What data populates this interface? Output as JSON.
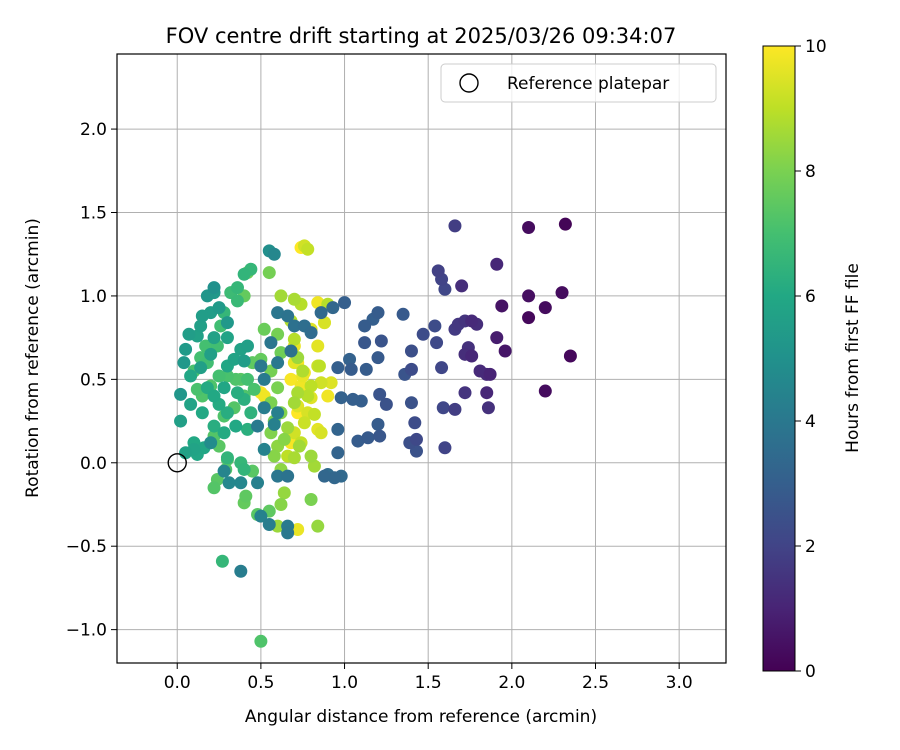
{
  "chart_data": {
    "type": "scatter",
    "title": "FOV centre drift starting at 2025/03/26 09:34:07",
    "xlabel": "Angular distance from reference (arcmin)",
    "ylabel": "Rotation from reference (arcmin)",
    "xlim": [
      -0.36,
      3.28
    ],
    "ylim": [
      -1.2,
      2.45
    ],
    "x_ticks": [
      0.0,
      0.5,
      1.0,
      1.5,
      2.0,
      2.5,
      3.0
    ],
    "y_ticks": [
      -1.0,
      -0.5,
      0.0,
      0.5,
      1.0,
      1.5,
      2.0
    ],
    "grid": true,
    "legend": {
      "placement": "top-right",
      "entries": [
        "Reference platepar"
      ]
    },
    "reference_point": {
      "x": 0.0,
      "y": 0.0
    },
    "colorbar": {
      "label": "Hours from first FF file",
      "range": [
        0,
        10
      ],
      "ticks": [
        0,
        2,
        4,
        6,
        8,
        10
      ],
      "colormap": "viridis"
    },
    "points": [
      [
        2.32,
        1.43,
        0.1
      ],
      [
        2.1,
        1.41,
        0.3
      ],
      [
        2.3,
        1.02,
        0.3
      ],
      [
        2.1,
        1.0,
        0.4
      ],
      [
        2.2,
        0.93,
        0.3
      ],
      [
        2.1,
        0.87,
        0.2
      ],
      [
        2.35,
        0.64,
        0.2
      ],
      [
        2.2,
        0.43,
        0.3
      ],
      [
        1.96,
        0.67,
        0.6
      ],
      [
        1.94,
        0.94,
        0.5
      ],
      [
        1.91,
        1.19,
        1.1
      ],
      [
        1.87,
        0.53,
        1.0
      ],
      [
        1.85,
        0.53,
        1.2
      ],
      [
        1.85,
        0.42,
        1.1
      ],
      [
        1.86,
        0.33,
        1.4
      ],
      [
        1.91,
        0.75,
        0.8
      ],
      [
        1.79,
        0.83,
        1.3
      ],
      [
        1.76,
        0.85,
        1.2
      ],
      [
        1.72,
        0.85,
        1.5
      ],
      [
        1.68,
        0.83,
        1.6
      ],
      [
        1.66,
        0.8,
        1.7
      ],
      [
        1.74,
        0.69,
        1.4
      ],
      [
        1.72,
        0.65,
        1.3
      ],
      [
        1.76,
        0.64,
        1.1
      ],
      [
        1.81,
        0.55,
        1.2
      ],
      [
        1.72,
        0.42,
        1.5
      ],
      [
        1.7,
        1.06,
        1.3
      ],
      [
        1.66,
        1.42,
        1.8
      ],
      [
        1.58,
        1.1,
        2.0
      ],
      [
        1.56,
        1.15,
        1.9
      ],
      [
        1.6,
        1.04,
        2.1
      ],
      [
        1.54,
        0.82,
        2.3
      ],
      [
        1.47,
        0.77,
        2.3
      ],
      [
        1.55,
        0.72,
        2.2
      ],
      [
        1.58,
        0.57,
        2.1
      ],
      [
        1.66,
        0.32,
        1.8
      ],
      [
        1.59,
        0.33,
        2.1
      ],
      [
        1.6,
        0.09,
        2.0
      ],
      [
        1.43,
        0.07,
        2.5
      ],
      [
        1.39,
        0.12,
        2.4
      ],
      [
        1.43,
        0.14,
        2.2
      ],
      [
        1.42,
        0.24,
        2.3
      ],
      [
        1.4,
        0.36,
        2.5
      ],
      [
        1.4,
        0.56,
        2.3
      ],
      [
        1.4,
        0.67,
        2.4
      ],
      [
        1.36,
        0.53,
        2.6
      ],
      [
        1.35,
        0.89,
        2.8
      ],
      [
        1.2,
        0.9,
        2.9
      ],
      [
        1.17,
        0.86,
        3.0
      ],
      [
        1.12,
        0.82,
        2.9
      ],
      [
        1.0,
        0.96,
        3.0
      ],
      [
        1.22,
        0.73,
        2.6
      ],
      [
        1.12,
        0.72,
        2.7
      ],
      [
        1.2,
        0.63,
        2.8
      ],
      [
        1.13,
        0.56,
        2.9
      ],
      [
        1.03,
        0.62,
        3.1
      ],
      [
        1.04,
        0.56,
        2.9
      ],
      [
        0.96,
        0.57,
        3.0
      ],
      [
        1.25,
        0.35,
        2.5
      ],
      [
        1.21,
        0.41,
        2.6
      ],
      [
        1.21,
        0.16,
        2.7
      ],
      [
        1.14,
        0.15,
        2.8
      ],
      [
        1.2,
        0.23,
        2.9
      ],
      [
        1.08,
        0.13,
        2.9
      ],
      [
        1.1,
        0.37,
        3.0
      ],
      [
        1.05,
        0.38,
        3.0
      ],
      [
        0.98,
        0.39,
        3.1
      ],
      [
        0.96,
        0.2,
        3.2
      ],
      [
        0.96,
        0.06,
        3.2
      ],
      [
        0.94,
        -0.09,
        3.3
      ],
      [
        0.88,
        -0.08,
        3.3
      ],
      [
        0.98,
        -0.08,
        3.4
      ],
      [
        0.9,
        -0.07,
        3.5
      ],
      [
        0.86,
        0.9,
        3.4
      ],
      [
        0.93,
        0.93,
        3.3
      ],
      [
        0.8,
        0.78,
        3.5
      ],
      [
        0.76,
        0.82,
        3.6
      ],
      [
        0.7,
        0.82,
        3.7
      ],
      [
        0.66,
        0.88,
        3.8
      ],
      [
        0.6,
        0.9,
        3.9
      ],
      [
        0.56,
        0.72,
        3.9
      ],
      [
        0.6,
        0.6,
        4.0
      ],
      [
        0.68,
        0.67,
        3.7
      ],
      [
        0.52,
        0.5,
        4.1
      ],
      [
        0.5,
        0.58,
        4.0
      ],
      [
        0.52,
        0.33,
        4.2
      ],
      [
        0.6,
        0.3,
        4.3
      ],
      [
        0.48,
        0.22,
        4.1
      ],
      [
        0.58,
        0.23,
        4.3
      ],
      [
        0.52,
        0.08,
        4.4
      ],
      [
        0.66,
        -0.08,
        3.8
      ],
      [
        0.6,
        -0.08,
        3.9
      ],
      [
        0.55,
        -0.37,
        4.2
      ],
      [
        0.5,
        -0.32,
        4.4
      ],
      [
        0.66,
        -0.42,
        4.0
      ],
      [
        0.38,
        -0.65,
        4.2
      ],
      [
        0.66,
        -0.38,
        4.1
      ],
      [
        0.48,
        -0.12,
        4.3
      ],
      [
        0.38,
        -0.12,
        4.6
      ],
      [
        0.28,
        -0.05,
        4.5
      ],
      [
        0.31,
        -0.12,
        4.6
      ],
      [
        0.2,
        0.12,
        4.8
      ],
      [
        0.58,
        1.25,
        4.6
      ],
      [
        0.55,
        1.27,
        4.9
      ],
      [
        0.22,
        1.05,
        5.0
      ],
      [
        0.18,
        1.0,
        5.2
      ],
      [
        0.22,
        1.02,
        5.3
      ],
      [
        0.25,
        0.93,
        5.4
      ],
      [
        0.3,
        0.84,
        5.3
      ],
      [
        0.2,
        0.9,
        5.5
      ],
      [
        0.15,
        0.88,
        5.5
      ],
      [
        0.14,
        0.82,
        5.6
      ],
      [
        0.12,
        0.76,
        5.7
      ],
      [
        0.07,
        0.77,
        5.5
      ],
      [
        0.05,
        0.68,
        5.4
      ],
      [
        0.04,
        0.6,
        5.3
      ],
      [
        0.02,
        0.41,
        5.2
      ],
      [
        0.02,
        0.25,
        5.6
      ],
      [
        0.05,
        0.06,
        5.7
      ],
      [
        0.1,
        0.08,
        5.8
      ],
      [
        0.12,
        0.05,
        5.9
      ],
      [
        0.16,
        0.09,
        5.9
      ],
      [
        0.1,
        0.12,
        6.0
      ],
      [
        0.08,
        0.35,
        5.8
      ],
      [
        0.08,
        0.52,
        5.9
      ],
      [
        0.14,
        0.57,
        5.6
      ],
      [
        0.2,
        0.65,
        5.6
      ],
      [
        0.22,
        0.75,
        5.7
      ],
      [
        0.3,
        0.75,
        5.8
      ],
      [
        0.34,
        0.62,
        5.8
      ],
      [
        0.3,
        0.58,
        5.9
      ],
      [
        0.38,
        0.68,
        5.7
      ],
      [
        0.4,
        0.61,
        5.5
      ],
      [
        0.42,
        0.7,
        5.6
      ],
      [
        0.28,
        0.45,
        5.9
      ],
      [
        0.22,
        0.4,
        6.0
      ],
      [
        0.18,
        0.45,
        6.1
      ],
      [
        0.25,
        0.35,
        6.1
      ],
      [
        0.3,
        0.3,
        6.2
      ],
      [
        0.35,
        0.22,
        6.0
      ],
      [
        0.28,
        0.18,
        6.1
      ],
      [
        0.22,
        0.22,
        6.2
      ],
      [
        0.15,
        0.3,
        6.0
      ],
      [
        0.36,
        0.42,
        6.2
      ],
      [
        0.4,
        0.38,
        6.3
      ],
      [
        0.44,
        0.3,
        6.4
      ],
      [
        0.42,
        0.2,
        6.3
      ],
      [
        0.3,
        0.03,
        6.5
      ],
      [
        0.38,
        0.0,
        6.6
      ],
      [
        0.4,
        -0.04,
        6.5
      ],
      [
        0.44,
        1.16,
        6.6
      ],
      [
        0.4,
        1.13,
        6.5
      ],
      [
        0.36,
        1.05,
        6.6
      ],
      [
        0.32,
        1.02,
        6.8
      ],
      [
        0.36,
        0.97,
        6.7
      ],
      [
        0.28,
        0.9,
        6.6
      ],
      [
        0.26,
        0.82,
        6.9
      ],
      [
        0.24,
        0.7,
        6.9
      ],
      [
        0.17,
        0.7,
        7.0
      ],
      [
        0.14,
        0.63,
        7.0
      ],
      [
        0.18,
        0.6,
        6.9
      ],
      [
        0.1,
        0.55,
        7.1
      ],
      [
        0.12,
        0.44,
        7.1
      ],
      [
        0.15,
        0.4,
        7.2
      ],
      [
        0.2,
        0.46,
        7.2
      ],
      [
        0.25,
        0.52,
        7.0
      ],
      [
        0.3,
        0.52,
        7.1
      ],
      [
        0.35,
        0.5,
        7.2
      ],
      [
        0.42,
        0.5,
        7.0
      ],
      [
        0.46,
        0.44,
        7.1
      ],
      [
        0.4,
        0.4,
        7.2
      ],
      [
        0.34,
        0.33,
        7.3
      ],
      [
        0.28,
        0.28,
        7.2
      ],
      [
        0.22,
        0.16,
        7.3
      ],
      [
        0.25,
        0.1,
        7.4
      ],
      [
        0.3,
        0.02,
        7.3
      ],
      [
        0.24,
        -0.1,
        7.4
      ],
      [
        0.22,
        -0.15,
        7.3
      ],
      [
        0.29,
        -0.04,
        7.3
      ],
      [
        0.45,
        -0.05,
        7.4
      ],
      [
        0.41,
        -0.2,
        7.5
      ],
      [
        0.4,
        -0.24,
        7.6
      ],
      [
        0.48,
        -0.31,
        7.4
      ],
      [
        0.55,
        -0.29,
        7.5
      ],
      [
        0.27,
        -0.59,
        6.6
      ],
      [
        0.5,
        -1.07,
        7.2
      ],
      [
        0.38,
        0.5,
        7.4
      ],
      [
        0.45,
        0.6,
        7.5
      ],
      [
        0.5,
        0.62,
        7.6
      ],
      [
        0.52,
        0.8,
        7.7
      ],
      [
        0.4,
        1.0,
        7.6
      ],
      [
        0.42,
        1.14,
        7.8
      ],
      [
        0.55,
        1.14,
        7.9
      ],
      [
        0.6,
        0.77,
        7.9
      ],
      [
        0.62,
        0.66,
        7.8
      ],
      [
        0.56,
        0.55,
        7.9
      ],
      [
        0.6,
        0.45,
        8.0
      ],
      [
        0.56,
        0.36,
        8.0
      ],
      [
        0.58,
        0.25,
        7.9
      ],
      [
        0.62,
        0.3,
        8.1
      ],
      [
        0.56,
        0.18,
        8.1
      ],
      [
        0.64,
        0.14,
        8.2
      ],
      [
        0.6,
        0.1,
        8.3
      ],
      [
        0.58,
        0.04,
        8.2
      ],
      [
        0.62,
        -0.04,
        8.3
      ],
      [
        0.64,
        -0.18,
        8.4
      ],
      [
        0.62,
        -0.25,
        8.2
      ],
      [
        0.6,
        -0.38,
        8.5
      ],
      [
        0.8,
        -0.22,
        8.0
      ],
      [
        0.84,
        -0.38,
        8.4
      ],
      [
        0.82,
        -0.02,
        8.6
      ],
      [
        0.8,
        0.04,
        8.5
      ],
      [
        0.73,
        0.1,
        8.6
      ],
      [
        0.7,
        0.03,
        8.7
      ],
      [
        0.66,
        0.21,
        8.5
      ],
      [
        0.7,
        0.36,
        8.6
      ],
      [
        0.72,
        0.42,
        8.7
      ],
      [
        0.75,
        0.55,
        8.8
      ],
      [
        0.72,
        0.63,
        8.5
      ],
      [
        0.7,
        0.74,
        8.9
      ],
      [
        0.68,
        0.85,
        8.8
      ],
      [
        0.74,
        0.95,
        8.9
      ],
      [
        0.7,
        0.98,
        8.7
      ],
      [
        0.62,
        1.0,
        8.6
      ],
      [
        0.78,
        1.28,
        9.1
      ],
      [
        0.76,
        1.3,
        9.3
      ],
      [
        0.8,
        0.46,
        9.0
      ],
      [
        0.78,
        0.4,
        8.9
      ],
      [
        0.82,
        0.29,
        9.1
      ],
      [
        0.76,
        0.24,
        9.2
      ],
      [
        0.7,
        0.18,
        9.3
      ],
      [
        0.74,
        0.12,
        9.1
      ],
      [
        0.66,
        0.04,
        9.0
      ],
      [
        0.72,
        -0.4,
        9.7
      ],
      [
        0.84,
        0.58,
        9.2
      ],
      [
        0.86,
        0.48,
        9.3
      ],
      [
        0.8,
        0.8,
        9.5
      ],
      [
        0.84,
        0.7,
        9.6
      ],
      [
        0.7,
        0.7,
        9.7
      ],
      [
        0.76,
        0.54,
        9.8
      ],
      [
        0.72,
        0.6,
        9.9
      ],
      [
        0.74,
        0.46,
        9.8
      ],
      [
        0.8,
        0.39,
        9.5
      ],
      [
        0.84,
        0.2,
        9.6
      ],
      [
        0.86,
        0.18,
        9.4
      ],
      [
        0.9,
        0.4,
        9.8
      ],
      [
        0.92,
        0.48,
        9.5
      ],
      [
        0.88,
        0.84,
        9.9
      ],
      [
        0.84,
        0.96,
        9.8
      ],
      [
        0.7,
        0.6,
        9.6
      ],
      [
        0.68,
        0.5,
        9.9
      ],
      [
        0.72,
        0.3,
        10.0
      ],
      [
        0.74,
        1.29,
        10.0
      ],
      [
        0.88,
        0.84,
        9.4
      ],
      [
        0.5,
        0.42,
        9.9
      ],
      [
        0.52,
        0.4,
        9.8
      ],
      [
        0.75,
        0.52,
        9.7
      ],
      [
        0.72,
        0.34,
        9.5
      ],
      [
        0.78,
        0.3,
        9.4
      ],
      [
        0.68,
        0.12,
        9.9
      ],
      [
        0.85,
        0.58,
        9.0
      ],
      [
        0.9,
        0.95,
        8.9
      ]
    ]
  }
}
